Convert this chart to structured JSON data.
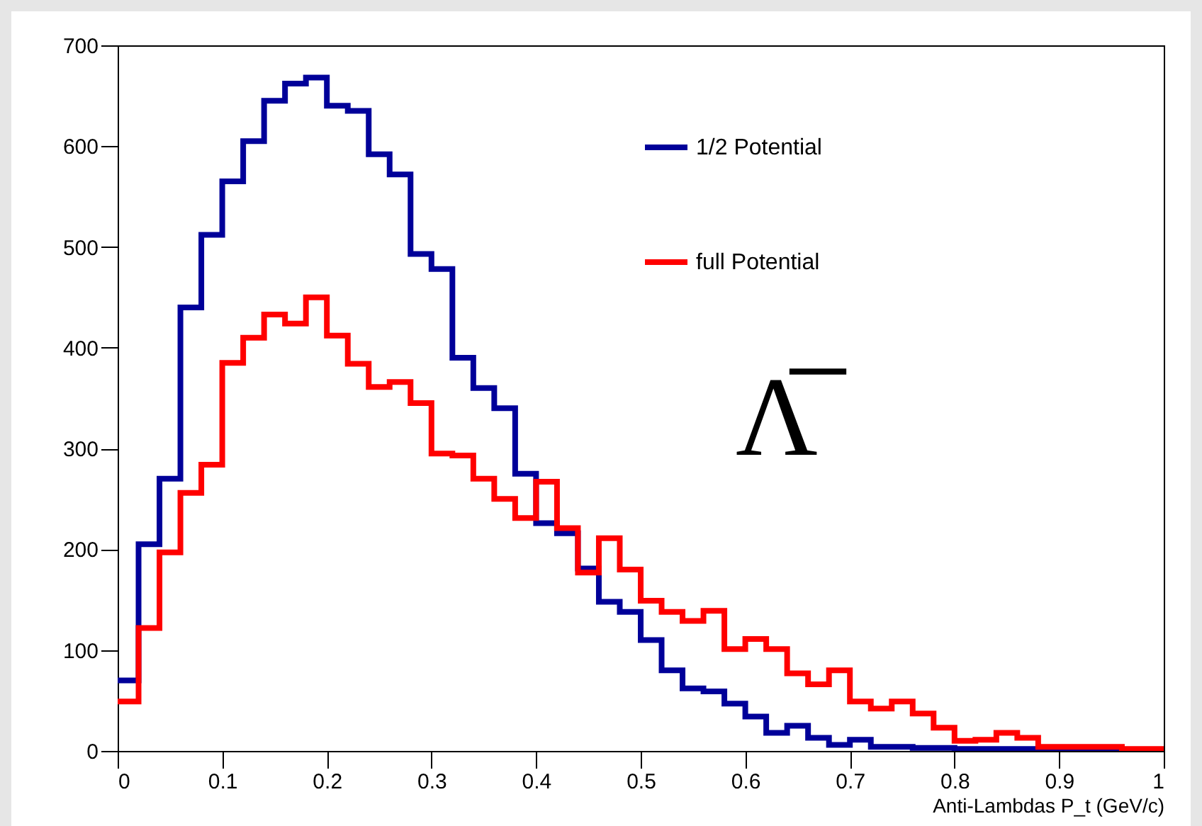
{
  "chart_data": {
    "type": "histogram",
    "xlabel": "Anti-Lambdas P_t (GeV/c)",
    "bins": [
      0,
      0.02,
      0.04,
      0.06,
      0.08,
      0.1,
      0.12,
      0.14,
      0.16,
      0.18,
      0.2,
      0.22,
      0.24,
      0.26,
      0.28,
      0.3,
      0.32,
      0.34,
      0.36,
      0.38,
      0.4,
      0.42,
      0.44,
      0.46,
      0.48,
      0.5,
      0.52,
      0.54,
      0.56,
      0.58,
      0.6,
      0.62,
      0.64,
      0.66,
      0.68,
      0.7,
      0.72,
      0.74,
      0.76,
      0.78,
      0.8,
      0.82,
      0.84,
      0.86,
      0.88,
      0.9,
      0.92,
      0.94,
      0.96,
      0.98,
      1
    ],
    "series": [
      {
        "name": "1/2 Potential",
        "color": "#000099",
        "values": [
          70,
          205,
          270,
          440,
          512,
          565,
          605,
          645,
          662,
          668,
          640,
          635,
          592,
          572,
          493,
          478,
          390,
          360,
          340,
          275,
          226,
          216,
          181,
          148,
          138,
          110,
          80,
          62,
          59,
          47,
          34,
          18,
          25,
          13,
          6,
          11,
          4,
          4,
          3,
          3,
          2,
          2,
          2,
          2,
          1,
          0,
          0,
          0,
          0,
          0
        ]
      },
      {
        "name": "full Potential",
        "color": "#ff0000",
        "values": [
          49,
          122,
          197,
          256,
          284,
          385,
          410,
          433,
          424,
          450,
          412,
          384,
          361,
          366,
          345,
          295,
          293,
          270,
          250,
          231,
          267,
          221,
          177,
          211,
          180,
          149,
          138,
          129,
          139,
          101,
          111,
          101,
          77,
          66,
          80,
          49,
          42,
          49,
          37,
          23,
          10,
          11,
          18,
          13,
          4,
          4,
          4,
          4,
          2,
          2
        ]
      }
    ],
    "xlim": [
      0,
      1
    ],
    "xticks": [
      0,
      0.1,
      0.2,
      0.3,
      0.4,
      0.5,
      0.6,
      0.7,
      0.8,
      0.9,
      1
    ],
    "ylim": [
      0,
      700
    ],
    "yticks": [
      0,
      100,
      200,
      300,
      400,
      500,
      600,
      700
    ],
    "grid": false,
    "legend": "top right",
    "annotations": [
      "Λ̅"
    ]
  }
}
